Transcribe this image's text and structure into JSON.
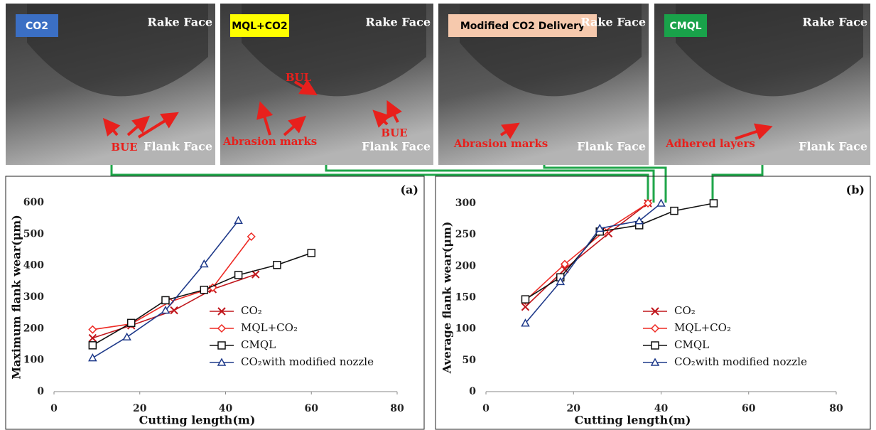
{
  "images": [
    {
      "label": "CO2",
      "tag_color": "#3b6fc4",
      "tag_text_color": "#ffffff",
      "rake": "Rake Face",
      "flank": "Flank Face",
      "notes": [
        "BUE"
      ]
    },
    {
      "label": "MQL+CO2",
      "tag_color": "#ffff00",
      "tag_text_color": "#000000",
      "rake": "Rake Face",
      "flank": "Flank Face",
      "notes": [
        "BUL",
        "Abrasion marks",
        "BUE"
      ]
    },
    {
      "label": "Modified CO2 Delivery",
      "tag_color": "#f6c9ad",
      "tag_text_color": "#000000",
      "rake": "Rake Face",
      "flank": "Flank Face",
      "notes": [
        "Abrasion marks"
      ]
    },
    {
      "label": "CMQL",
      "tag_color": "#19a24a",
      "tag_text_color": "#ffffff",
      "rake": "Rake Face",
      "flank": "Flank Face",
      "notes": [
        "Adhered layers"
      ]
    }
  ],
  "chart_data": [
    {
      "type": "line",
      "panel": "(a)",
      "x_label": "Cutting length(m)",
      "y_label": "Maximum flank wear(μm)",
      "xlim": [
        0,
        80
      ],
      "xticks": [
        0,
        20,
        40,
        60,
        80
      ],
      "ylim": [
        0,
        600
      ],
      "yticks": [
        0,
        100,
        200,
        300,
        400,
        500,
        600
      ],
      "legend": "lower right",
      "series": [
        {
          "name": "CO₂",
          "color": "#c0161c",
          "marker": "x",
          "x": [
            9,
            18,
            28,
            37,
            47
          ],
          "values": [
            170,
            210,
            258,
            325,
            372
          ]
        },
        {
          "name": "MQL+CO₂",
          "color": "#ee2a24",
          "marker": "diamond",
          "x": [
            9,
            18,
            27,
            37,
            46
          ],
          "values": [
            197,
            215,
            285,
            330,
            492
          ]
        },
        {
          "name": "CMQL",
          "color": "#111111",
          "marker": "square",
          "x": [
            9,
            18,
            26,
            35,
            43,
            52,
            60
          ],
          "values": [
            147,
            218,
            290,
            323,
            370,
            402,
            440
          ]
        },
        {
          "name": "CO₂with modified nozzle",
          "color": "#1f3a8a",
          "marker": "triangle",
          "x": [
            9,
            17,
            26,
            35,
            43
          ],
          "values": [
            107,
            173,
            258,
            405,
            543
          ]
        }
      ]
    },
    {
      "type": "line",
      "panel": "(b)",
      "x_label": "Cutting length(m)",
      "y_label": "Average flank wear(μm)",
      "xlim": [
        0,
        80
      ],
      "xticks": [
        0,
        20,
        40,
        60,
        80
      ],
      "ylim": [
        0,
        300
      ],
      "yticks": [
        0,
        50,
        100,
        150,
        200,
        250,
        300
      ],
      "legend": "lower right",
      "series": [
        {
          "name": "CO₂",
          "color": "#c0161c",
          "marker": "x",
          "x": [
            9,
            18,
            28,
            37
          ],
          "values": [
            135,
            195,
            252,
            300
          ]
        },
        {
          "name": "MQL+CO₂",
          "color": "#ee2a24",
          "marker": "diamond",
          "x": [
            9,
            18,
            27,
            37
          ],
          "values": [
            145,
            203,
            255,
            300
          ]
        },
        {
          "name": "CMQL",
          "color": "#111111",
          "marker": "square",
          "x": [
            9,
            17,
            26,
            35,
            43,
            52
          ],
          "values": [
            147,
            182,
            255,
            265,
            288,
            300
          ]
        },
        {
          "name": "CO₂with modified nozzle",
          "color": "#1f3a8a",
          "marker": "triangle",
          "x": [
            9,
            17,
            26,
            35,
            40
          ],
          "values": [
            109,
            175,
            260,
            272,
            300
          ]
        }
      ]
    }
  ]
}
